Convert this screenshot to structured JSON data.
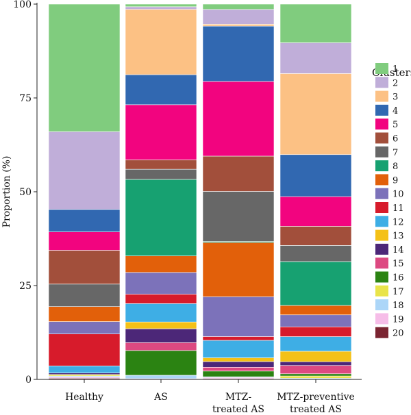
{
  "chart_data": {
    "type": "stacked-bar",
    "ylabel": "Proportion (%)",
    "ylim": [
      0,
      100
    ],
    "yticks": [
      0,
      25,
      50,
      75,
      100
    ],
    "grid": false,
    "legend": {
      "title": "Clusters",
      "placement": "right"
    },
    "categories": [
      {
        "lines": [
          "Healthy"
        ]
      },
      {
        "lines": [
          "AS"
        ]
      },
      {
        "lines": [
          "MTZ-",
          "treated AS"
        ]
      },
      {
        "lines": [
          "MTZ-preventive",
          "treated AS"
        ]
      }
    ],
    "series": [
      {
        "name": "1",
        "color": "#80cc7e",
        "values": [
          34.0,
          0.7,
          1.4,
          10.3
        ]
      },
      {
        "name": "2",
        "color": "#c0aed9",
        "values": [
          20.7,
          0.7,
          3.9,
          8.2
        ]
      },
      {
        "name": "3",
        "color": "#fcc184",
        "values": [
          0.0,
          17.4,
          0.5,
          21.6
        ]
      },
      {
        "name": "4",
        "color": "#3168b1",
        "values": [
          6.0,
          8.0,
          14.6,
          11.2
        ]
      },
      {
        "name": "5",
        "color": "#f2047f",
        "values": [
          4.9,
          14.7,
          19.7,
          7.9
        ]
      },
      {
        "name": "6",
        "color": "#a24f3b",
        "values": [
          9.0,
          2.5,
          9.3,
          5.1
        ]
      },
      {
        "name": "7",
        "color": "#676767",
        "values": [
          6.0,
          2.7,
          13.2,
          4.3
        ]
      },
      {
        "name": "8",
        "color": "#17a171",
        "values": [
          0.0,
          20.4,
          0.3,
          11.7
        ]
      },
      {
        "name": "9",
        "color": "#e2600a",
        "values": [
          4.0,
          4.4,
          14.3,
          2.5
        ]
      },
      {
        "name": "10",
        "color": "#7c72ba",
        "values": [
          3.3,
          5.8,
          10.5,
          3.2
        ]
      },
      {
        "name": "11",
        "color": "#d71b2b",
        "values": [
          8.5,
          2.5,
          1.0,
          2.6
        ]
      },
      {
        "name": "12",
        "color": "#3eaee5",
        "values": [
          1.9,
          4.9,
          4.6,
          3.9
        ]
      },
      {
        "name": "13",
        "color": "#f4c117",
        "values": [
          0.0,
          1.8,
          1.0,
          2.8
        ]
      },
      {
        "name": "14",
        "color": "#4c2778",
        "values": [
          0.4,
          3.7,
          1.5,
          1.0
        ]
      },
      {
        "name": "15",
        "color": "#dd4981",
        "values": [
          0.0,
          2.1,
          1.0,
          2.2
        ]
      },
      {
        "name": "16",
        "color": "#2b8312",
        "values": [
          0.0,
          6.6,
          1.5,
          0.6
        ]
      },
      {
        "name": "17",
        "color": "#e9e44a",
        "values": [
          0.4,
          0.0,
          0.0,
          0.6
        ]
      },
      {
        "name": "18",
        "color": "#acd6f8",
        "values": [
          0.3,
          0.9,
          0.2,
          0.3
        ]
      },
      {
        "name": "19",
        "color": "#f6bde8",
        "values": [
          0.3,
          0.2,
          0.3,
          0.0
        ]
      },
      {
        "name": "20",
        "color": "#7a2431",
        "values": [
          0.3,
          0.0,
          0.2,
          0.0
        ]
      }
    ]
  }
}
